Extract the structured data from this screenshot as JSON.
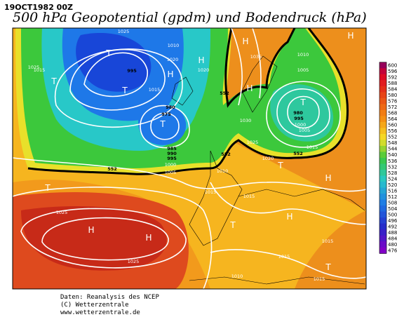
{
  "header": {
    "date": "19OCT1982 00Z",
    "title": "500 hPa Geopotential (gpdm) und Bodendruck (hPa)"
  },
  "map": {
    "labels": [
      "T",
      "T",
      "T",
      "H",
      "H",
      "H",
      "H",
      "H",
      "T",
      "T",
      "T",
      "T",
      "H",
      "H",
      "H",
      "T",
      "H",
      "T",
      "1025",
      "1025",
      "1015",
      "995",
      "1010",
      "1020",
      "1020",
      "1015",
      "975",
      "980",
      "985",
      "990",
      "995",
      "1000",
      "1005",
      "1035",
      "1010",
      "1005",
      "1030",
      "1025",
      "1020",
      "1010",
      "1015",
      "980",
      "995",
      "1000",
      "1005",
      "1015",
      "1015",
      "1025",
      "1025",
      "1015",
      "1010",
      "1015",
      "1015",
      "552",
      "552",
      "552",
      "552"
    ]
  },
  "colorbar": {
    "ticks": [
      600,
      596,
      592,
      588,
      584,
      580,
      576,
      572,
      568,
      564,
      560,
      556,
      552,
      548,
      544,
      540,
      536,
      532,
      528,
      524,
      520,
      516,
      512,
      508,
      504,
      500,
      496,
      492,
      488,
      484,
      480,
      476
    ]
  },
  "footer": {
    "lines": [
      "Daten: Reanalysis des NCEP",
      "(C) Wetterzentrale",
      "www.wetterzentrale.de"
    ]
  }
}
